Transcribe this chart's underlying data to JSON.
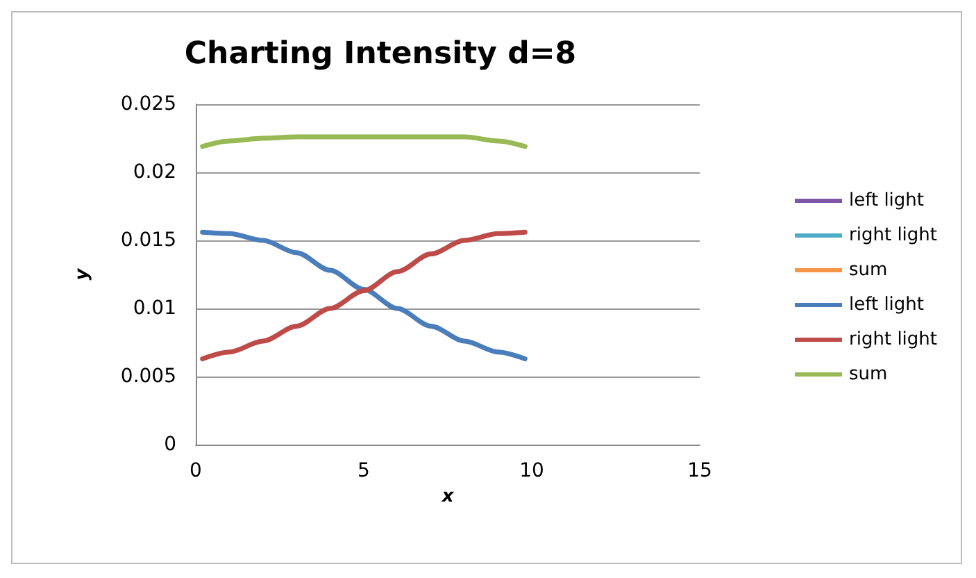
{
  "chart_data": {
    "type": "line",
    "title": "Charting Intensity d=8",
    "xlabel": "x",
    "ylabel": "y",
    "x": [
      0.2,
      1,
      2,
      3,
      4,
      5,
      6,
      7,
      8,
      9,
      9.8
    ],
    "series": [
      {
        "name": "left light",
        "color": "#7e57a8",
        "values": [
          null,
          null,
          null,
          null,
          null,
          null,
          null,
          null,
          null,
          null,
          null
        ]
      },
      {
        "name": "right light",
        "color": "#4bacc6",
        "values": [
          null,
          null,
          null,
          null,
          null,
          null,
          null,
          null,
          null,
          null,
          null
        ]
      },
      {
        "name": "sum",
        "color": "#f79646",
        "values": [
          null,
          null,
          null,
          null,
          null,
          null,
          null,
          null,
          null,
          null,
          null
        ]
      },
      {
        "name": "left light",
        "color": "#4a7ebb",
        "values": [
          0.0156,
          0.0155,
          0.015,
          0.0141,
          0.0128,
          0.0114,
          0.01,
          0.0087,
          0.0076,
          0.0068,
          0.0063
        ]
      },
      {
        "name": "right light",
        "color": "#be4b48",
        "values": [
          0.0063,
          0.0068,
          0.0076,
          0.0087,
          0.01,
          0.0113,
          0.0127,
          0.014,
          0.015,
          0.0155,
          0.0156
        ]
      },
      {
        "name": "sum",
        "color": "#98b954",
        "values": [
          0.0219,
          0.0223,
          0.0225,
          0.0226,
          0.0226,
          0.0226,
          0.0226,
          0.0226,
          0.0226,
          0.0223,
          0.0219
        ]
      }
    ],
    "xlim": [
      0,
      15
    ],
    "xticks": [
      0,
      5,
      10,
      15
    ],
    "ylim": [
      0,
      0.025
    ],
    "yticks": [
      0,
      0.005,
      0.01,
      0.015,
      0.02,
      0.025
    ],
    "grid": "y",
    "legend": "right"
  }
}
